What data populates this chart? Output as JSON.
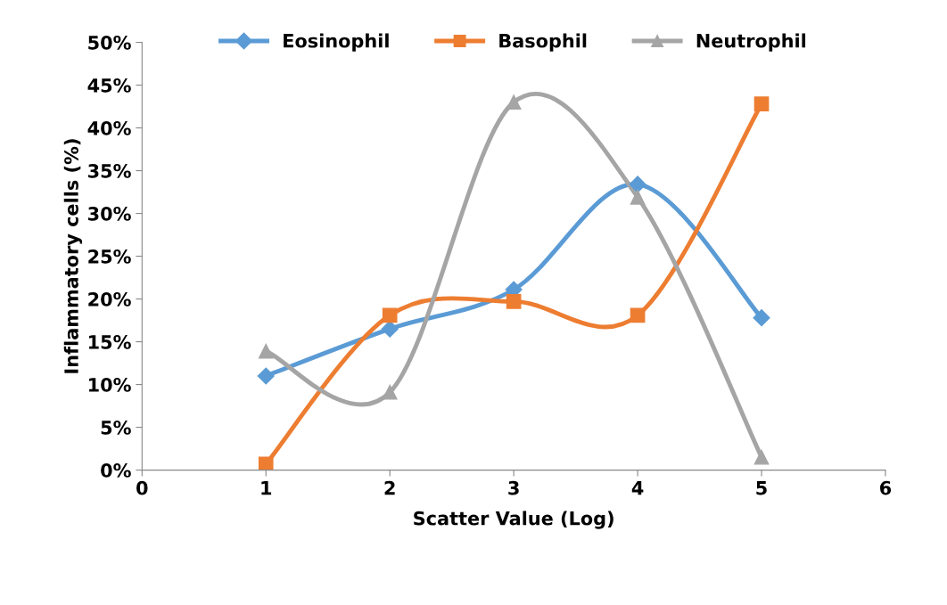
{
  "chart_data": {
    "type": "line",
    "xlabel": "Scatter Value (Log)",
    "ylabel": "Inflammatory cells (%)",
    "x": [
      1,
      2,
      3,
      4,
      5
    ],
    "series": [
      {
        "name": "Eosinophil",
        "color": "#5b9bd5",
        "marker": "diamond",
        "values": [
          11.0,
          16.5,
          21.1,
          33.4,
          17.8
        ]
      },
      {
        "name": "Basophil",
        "color": "#ed7d31",
        "marker": "square",
        "values": [
          0.7,
          18.1,
          19.7,
          18.1,
          42.8
        ]
      },
      {
        "name": "Neutrophil",
        "color": "#a5a5a5",
        "marker": "triangle",
        "values": [
          13.9,
          9.1,
          43.0,
          31.9,
          1.5
        ]
      }
    ],
    "xlim": [
      0,
      6
    ],
    "xticks": [
      0,
      1,
      2,
      3,
      4,
      5,
      6
    ],
    "ylim": [
      0,
      50
    ],
    "yticks": [
      {
        "value": 0,
        "label": "0%"
      },
      {
        "value": 5,
        "label": "5%"
      },
      {
        "value": 10,
        "label": "10%"
      },
      {
        "value": 15,
        "label": "15%"
      },
      {
        "value": 20,
        "label": "20%"
      },
      {
        "value": 25,
        "label": "25%"
      },
      {
        "value": 30,
        "label": "30%"
      },
      {
        "value": 35,
        "label": "35%"
      },
      {
        "value": 40,
        "label": "40%"
      },
      {
        "value": 45,
        "label": "45%"
      },
      {
        "value": 50,
        "label": "50%"
      }
    ],
    "grid": false,
    "legend": "top",
    "line_style": "solid"
  }
}
